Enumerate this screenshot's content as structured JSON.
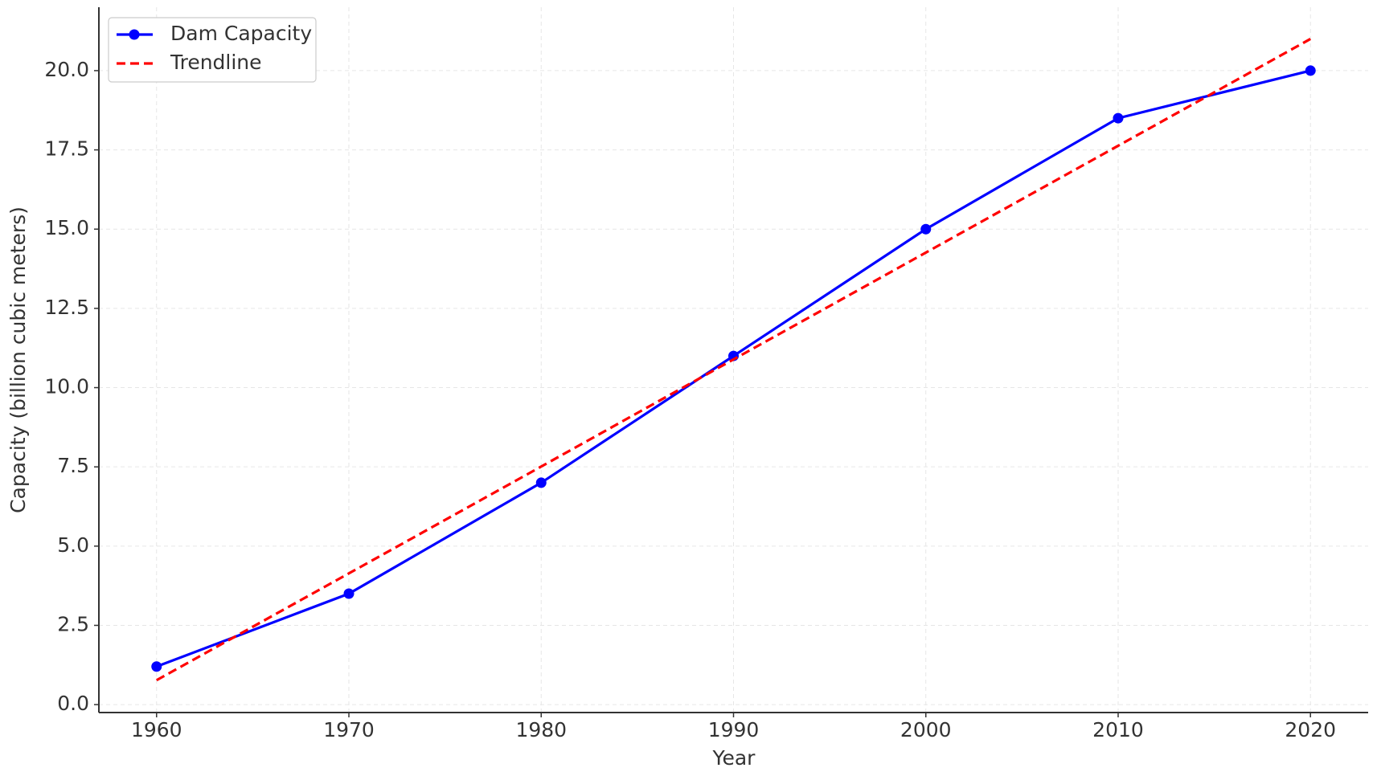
{
  "chart_data": {
    "type": "line",
    "xlabel": "Year",
    "ylabel": "Capacity (billion cubic meters)",
    "x": [
      1960,
      1970,
      1980,
      1990,
      2000,
      2010,
      2020
    ],
    "series": [
      {
        "name": "Dam Capacity",
        "color": "#0000ff",
        "style": "solid",
        "markers": true,
        "values": [
          1.2,
          3.5,
          7,
          11,
          15,
          18.5,
          20
        ]
      },
      {
        "name": "Trendline",
        "color": "#ff0000",
        "style": "dashed",
        "markers": false,
        "values": [
          0.77,
          4.14,
          7.51,
          10.89,
          14.26,
          17.63,
          21.0
        ]
      }
    ],
    "xlim": [
      1957,
      2023
    ],
    "xticks": [
      1960,
      1970,
      1980,
      1990,
      2000,
      2010,
      2020
    ],
    "ylim": [
      -0.25,
      22.0
    ],
    "yticks": [
      {
        "value": 0,
        "label": "0.0"
      },
      {
        "value": 2.5,
        "label": "2.5"
      },
      {
        "value": 5,
        "label": "5.0"
      },
      {
        "value": 7.5,
        "label": "7.5"
      },
      {
        "value": 10,
        "label": "10.0"
      },
      {
        "value": 12.5,
        "label": "12.5"
      },
      {
        "value": 15,
        "label": "15.0"
      },
      {
        "value": 17.5,
        "label": "17.5"
      },
      {
        "value": 20,
        "label": "20.0"
      }
    ],
    "grid": true,
    "legend": "upper left"
  }
}
